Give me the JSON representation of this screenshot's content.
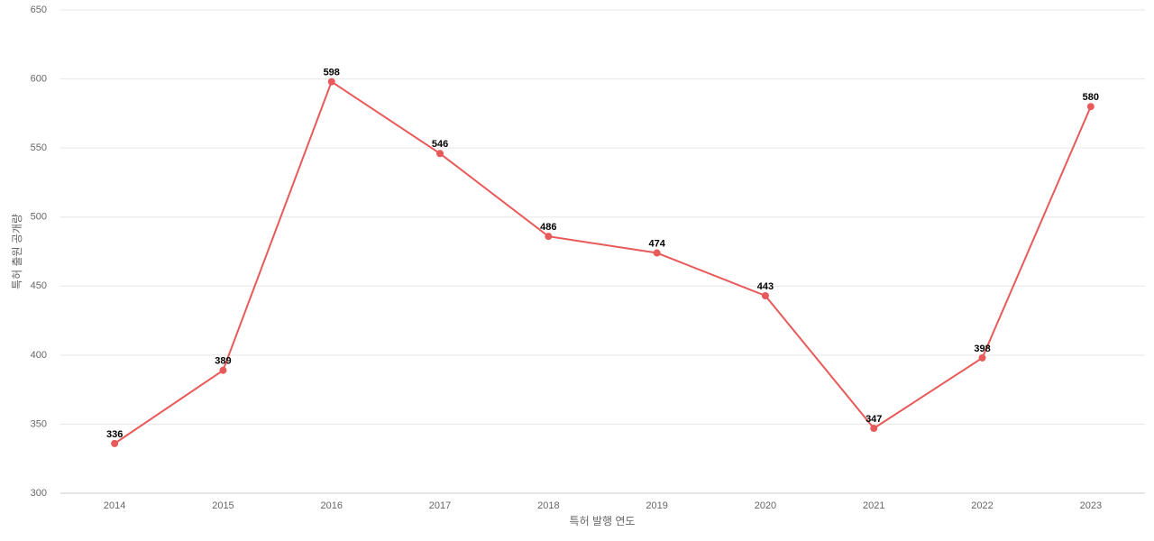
{
  "chart_data": {
    "type": "line",
    "x_label": "특허 발행 연도",
    "y_label": "특허 출원 공개량",
    "categories": [
      "2014",
      "2015",
      "2016",
      "2017",
      "2018",
      "2019",
      "2020",
      "2021",
      "2022",
      "2023"
    ],
    "series": [
      {
        "name": "특허 출원 공개량",
        "color": "#e85a5a",
        "values": [
          336,
          389,
          598,
          546,
          486,
          474,
          443,
          347,
          398,
          580
        ]
      }
    ],
    "ylim": [
      300,
      650
    ],
    "yticks": [
      300,
      350,
      400,
      450,
      500,
      550,
      600,
      650
    ],
    "grid": true,
    "data_labels": true
  }
}
